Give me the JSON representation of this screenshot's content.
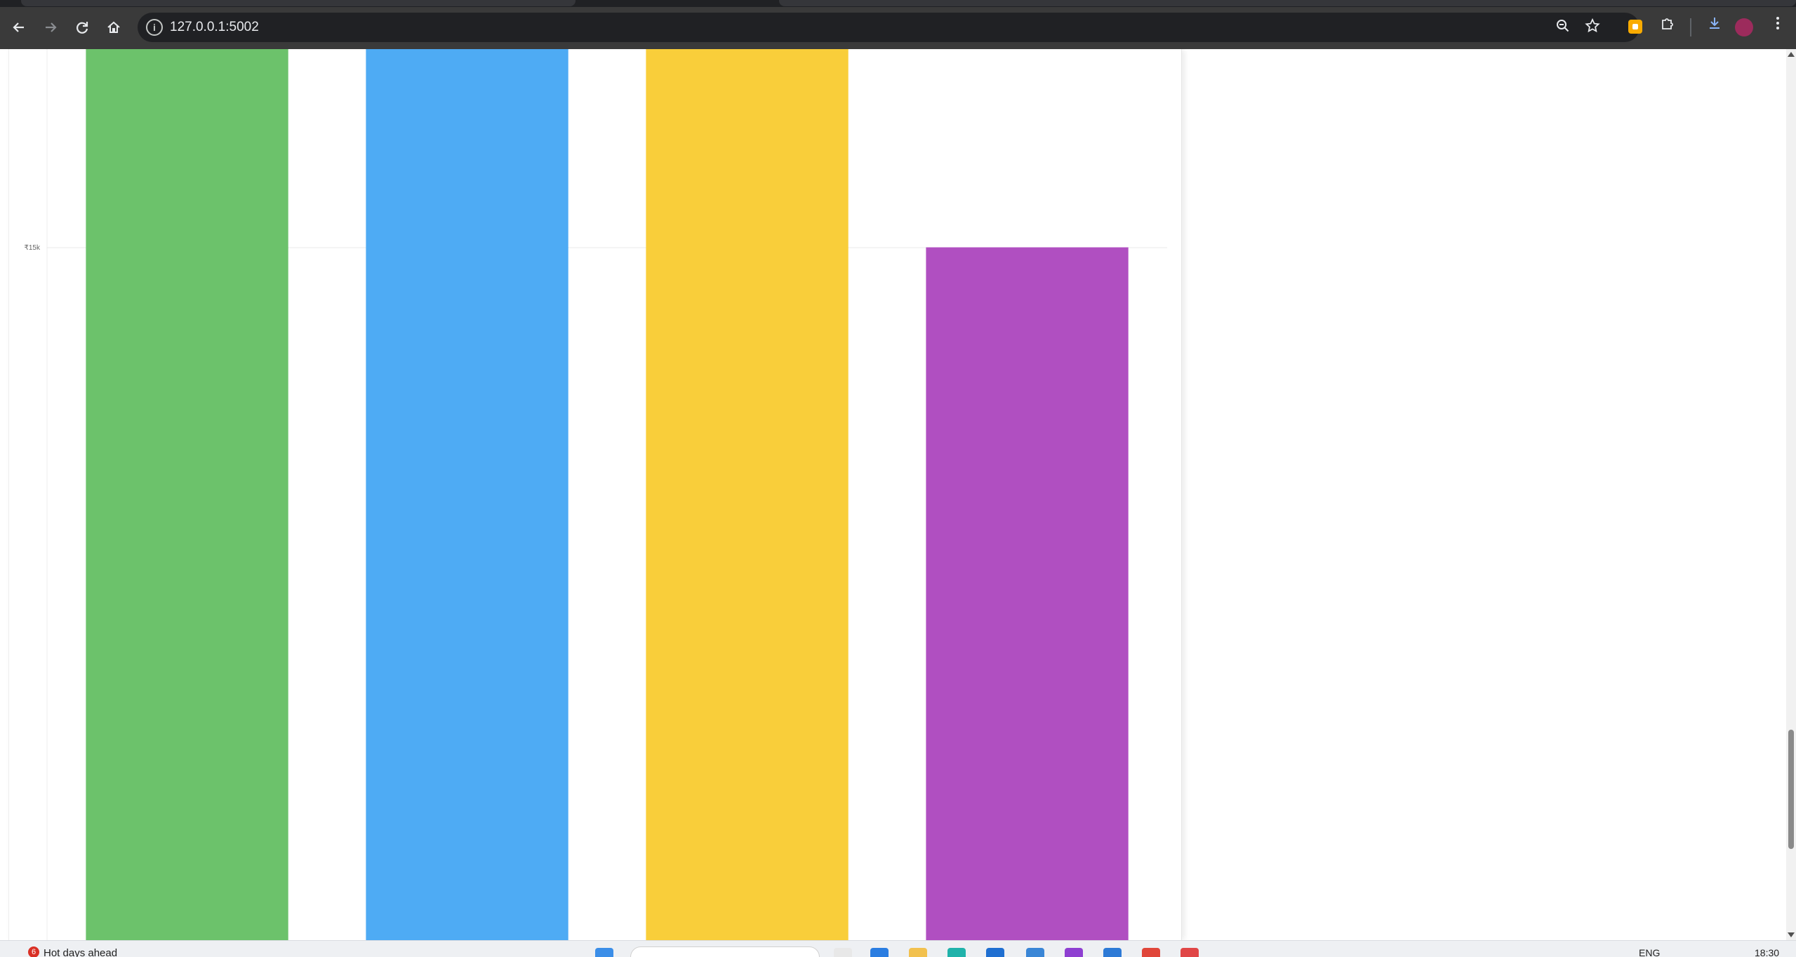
{
  "browser": {
    "url": "127.0.0.1:5002",
    "icons": {
      "back": "arrow-left-icon",
      "forward": "arrow-right-icon",
      "reload": "reload-icon",
      "home": "home-icon",
      "site_info": "info-icon",
      "zoom": "zoom-out-icon",
      "bookmark": "star-icon",
      "extensions": "puzzle-icon",
      "downloads": "download-icon",
      "menu": "kebab-menu-icon"
    }
  },
  "chart_data": {
    "type": "bar",
    "categories": [
      "",
      "",
      "",
      ""
    ],
    "values": [
      null,
      null,
      null,
      15000
    ],
    "colors": [
      "#6cc26b",
      "#4eabf4",
      "#f9ce3a",
      "#b04fc1"
    ],
    "ytick_labels": [
      "₹15k"
    ],
    "ytick_values": [
      15000
    ],
    "note_visible_range": "bars 1-3 extend above the visible area; bar 4 tops at 15000",
    "grid": true
  },
  "taskbar": {
    "weather_badge": "6",
    "weather_text": "Hot days ahead",
    "language": "ENG",
    "time": "18:30"
  }
}
